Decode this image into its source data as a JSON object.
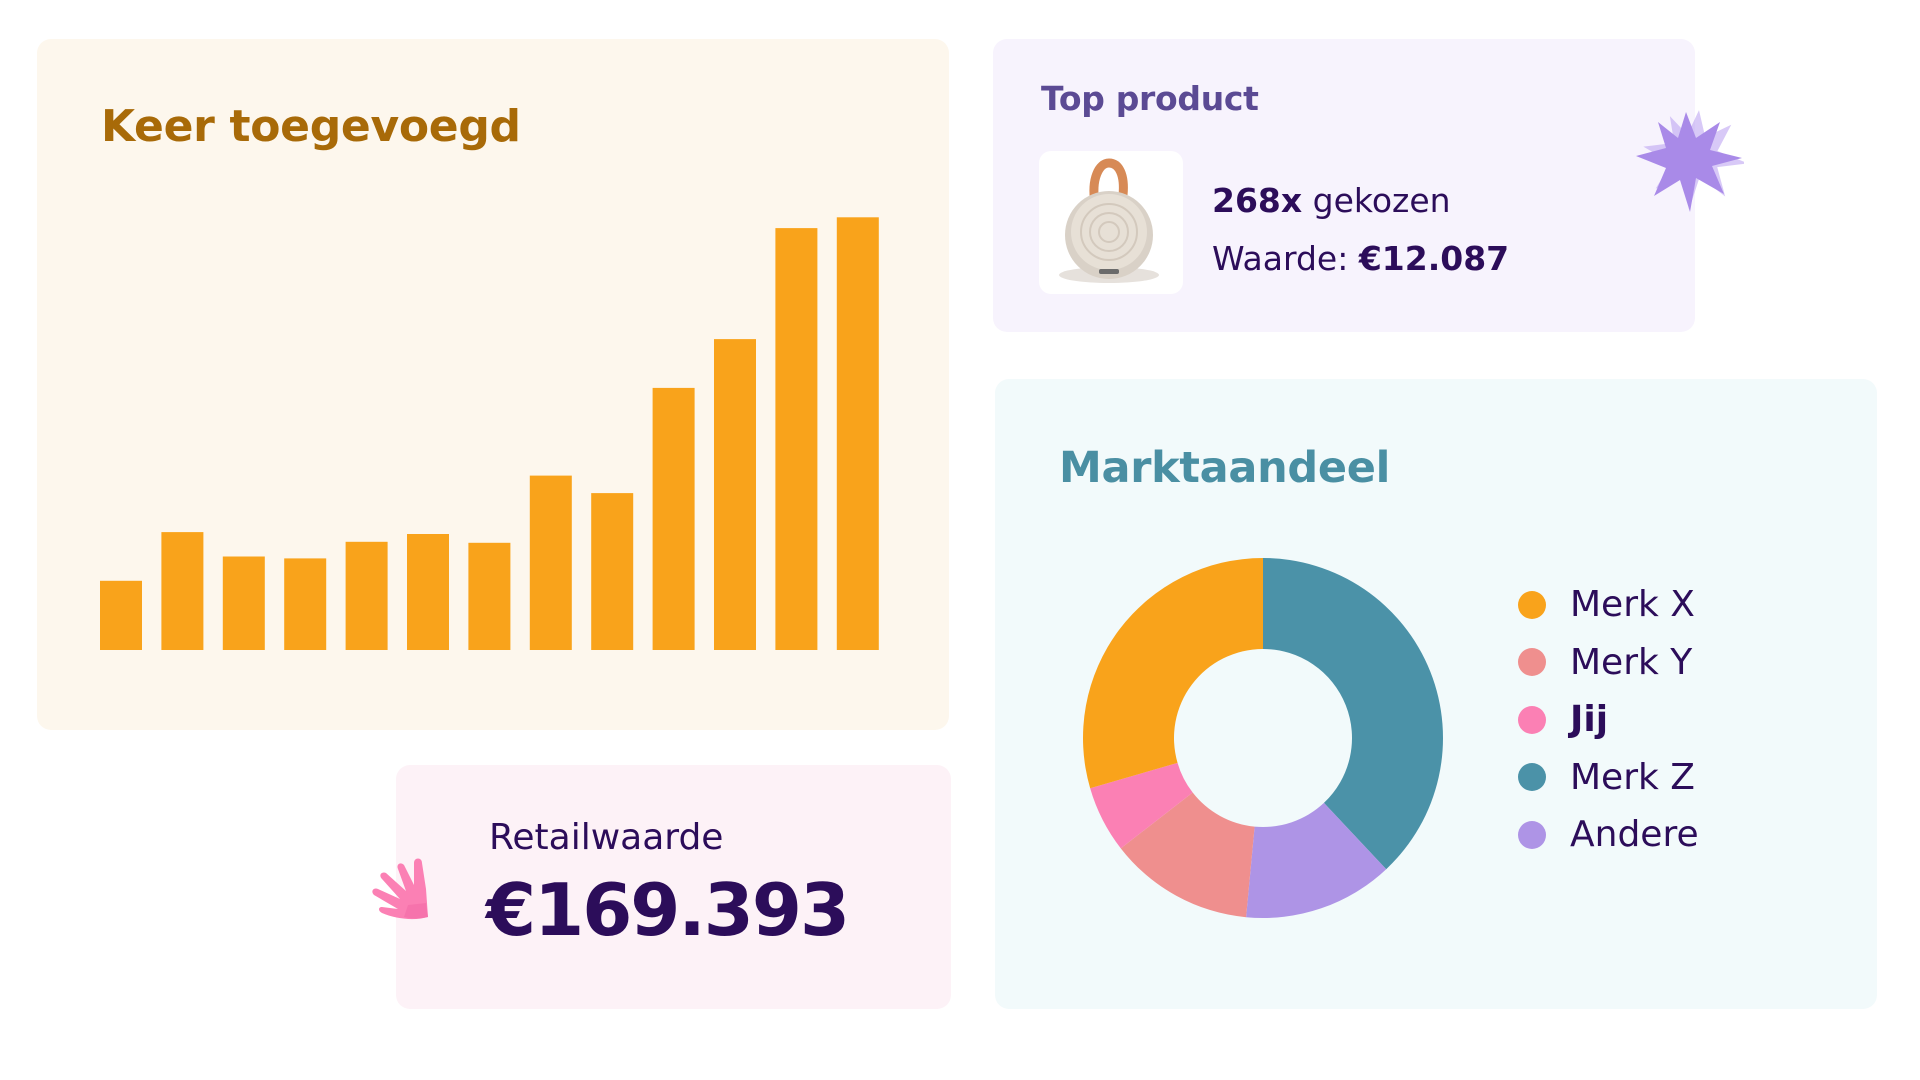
{
  "bar_card": {
    "title": "Keer toegevoegd"
  },
  "chart_data": [
    {
      "type": "bar",
      "title": "Keer toegevoegd",
      "categories": [
        "",
        "",
        "",
        "",
        "",
        "",
        "",
        "",
        "",
        "",
        "",
        "",
        ""
      ],
      "values": [
        71,
        121,
        96,
        94,
        111,
        119,
        110,
        179,
        161,
        269,
        319,
        433,
        444
      ],
      "ylim": [
        0,
        470
      ],
      "color": "#f9a31b",
      "grid": false,
      "axes_visible": false
    },
    {
      "type": "pie",
      "title": "Marktaandeel",
      "donut": true,
      "labels": [
        "Merk X",
        "Merk Y",
        "Jij",
        "Merk Z",
        "Andere"
      ],
      "values": [
        29.5,
        13,
        6,
        38,
        13.5
      ],
      "slice_order_clockwise_from_top": [
        "Merk Z",
        "Andere",
        "Merk Y",
        "Jij",
        "Merk X"
      ],
      "colors": {
        "Merk X": "#f9a31b",
        "Merk Y": "#ef8f8e",
        "Jij": "#fb80b4",
        "Merk Z": "#4b92a8",
        "Andere": "#ae94e6"
      },
      "legend_position": "right"
    }
  ],
  "top_product": {
    "title": "Top product",
    "count": "268x",
    "count_suffix": "gekozen",
    "value_label": "Waarde:",
    "value": "€12.087",
    "image_icon": "speaker-product-image"
  },
  "retail": {
    "label": "Retailwaarde",
    "value": "€169.393"
  },
  "market_share": {
    "title": "Marktaandeel",
    "legend": [
      {
        "label": "Merk X",
        "color": "#f9a31b",
        "emphasis": false
      },
      {
        "label": "Merk Y",
        "color": "#ef8f8e",
        "emphasis": false
      },
      {
        "label": "Jij",
        "color": "#fb80b4",
        "emphasis": true
      },
      {
        "label": "Merk Z",
        "color": "#4b92a8",
        "emphasis": false
      },
      {
        "label": "Andere",
        "color": "#ae94e6",
        "emphasis": false
      }
    ]
  },
  "decorations": {
    "star_icon": "purple-star-icon",
    "hand_icon": "pink-hand-icon"
  }
}
